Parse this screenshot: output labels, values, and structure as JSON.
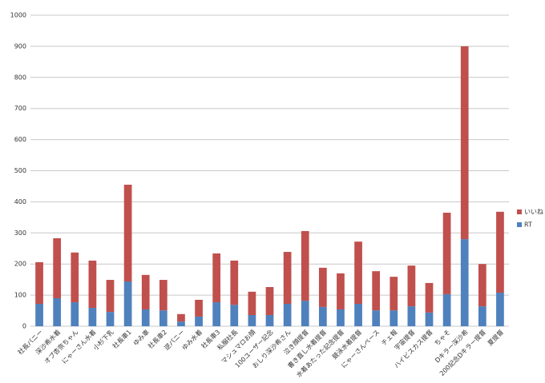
{
  "chart_data": {
    "type": "stacked-bar",
    "categories": [
      "社長バニー",
      "深沙希水着",
      "オブ杏奈ちゃん",
      "にゃーさん水着",
      "小杉下乳",
      "社長車1",
      "ゆみ車",
      "社長車2",
      "逆バニー",
      "ゆみ水着",
      "社長車3",
      "私服社長",
      "マシュマロお顔",
      "100ユーザー記念",
      "おしり深沙希さん",
      "泣き顔提督",
      "書き直し水着提督",
      "水着あたった記念提督",
      "競泳水着提督",
      "にゃーさんベース",
      "チェ報",
      "宇宙提督",
      "ハイビスカス提督",
      "ちゃそ",
      "Dキラー深沙希",
      "200記念Dキラー提督",
      "夏提督"
    ],
    "series": [
      {
        "name": "RT",
        "color": "#4f81bd",
        "values": [
          72,
          90,
          77,
          59,
          46,
          144,
          54,
          51,
          15,
          31,
          77,
          69,
          36,
          36,
          72,
          82,
          62,
          54,
          72,
          51,
          51,
          64,
          44,
          103,
          280,
          64,
          108
        ]
      },
      {
        "name": "いいね",
        "color": "#c0504d",
        "values": [
          134,
          193,
          160,
          152,
          103,
          311,
          111,
          98,
          24,
          54,
          157,
          142,
          75,
          90,
          167,
          224,
          126,
          116,
          200,
          126,
          108,
          131,
          95,
          262,
          620,
          136,
          260
        ]
      }
    ],
    "ylim": [
      0,
      1000
    ],
    "yticks": [
      0,
      100,
      200,
      300,
      400,
      500,
      600,
      700,
      800,
      900,
      1000
    ],
    "grid": true,
    "legend": "right"
  }
}
